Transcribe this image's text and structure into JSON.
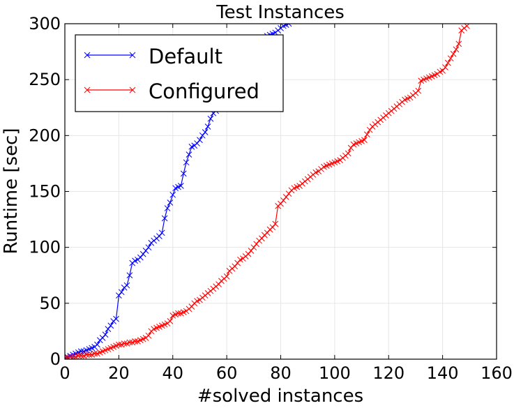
{
  "chart_data": {
    "type": "line",
    "title": "Test Instances",
    "xlabel": "#solved instances",
    "ylabel": "Runtime [sec]",
    "xlim": [
      0,
      160
    ],
    "ylim": [
      0,
      300
    ],
    "xticks": [
      "0",
      "20",
      "40",
      "60",
      "80",
      "100",
      "120",
      "140",
      "160"
    ],
    "yticks": [
      "0",
      "50",
      "100",
      "150",
      "200",
      "250",
      "300"
    ],
    "grid": true,
    "legend_position": "top-left",
    "marker": "x",
    "series": [
      {
        "name": "Default",
        "color": "#0000ff",
        "x": [
          0,
          1,
          2,
          3,
          4,
          5,
          6,
          7,
          8,
          9,
          10,
          11,
          12,
          13,
          14,
          15,
          16,
          17,
          18,
          19,
          20,
          21,
          22,
          23,
          24,
          25,
          26,
          27,
          28,
          29,
          30,
          31,
          32,
          33,
          34,
          35,
          36,
          37,
          38,
          39,
          40,
          41,
          42,
          43,
          44,
          45,
          46,
          47,
          48,
          49,
          50,
          51,
          52,
          53,
          54,
          55,
          56,
          57,
          58,
          59,
          60,
          61,
          62,
          63,
          64,
          65,
          66,
          67,
          68,
          69,
          70,
          71,
          72,
          73,
          74,
          75,
          76,
          77,
          78,
          79,
          80,
          81,
          82,
          83
        ],
        "y": [
          1,
          2,
          3,
          4,
          5,
          6,
          7,
          7,
          8,
          9,
          10,
          11,
          13,
          17,
          19,
          22,
          27,
          30,
          34,
          36,
          57,
          60,
          64,
          66,
          75,
          86,
          88,
          89,
          91,
          94,
          97,
          100,
          104,
          106,
          108,
          110,
          113,
          126,
          135,
          140,
          147,
          153,
          154,
          155,
          166,
          176,
          183,
          190,
          191,
          193,
          196,
          200,
          203,
          208,
          215,
          220,
          222,
          225,
          228,
          232,
          236,
          241,
          245,
          249,
          253,
          257,
          261,
          265,
          270,
          274,
          278,
          280,
          283,
          285,
          287,
          289,
          290,
          291,
          292,
          294,
          296,
          298,
          299,
          300
        ]
      },
      {
        "name": "Configured",
        "color": "#ff0000",
        "x": [
          0,
          1,
          2,
          3,
          4,
          5,
          6,
          7,
          8,
          9,
          10,
          11,
          12,
          13,
          14,
          15,
          16,
          17,
          18,
          19,
          20,
          21,
          22,
          23,
          24,
          25,
          26,
          27,
          28,
          29,
          30,
          31,
          32,
          33,
          34,
          35,
          36,
          37,
          38,
          39,
          40,
          41,
          42,
          43,
          44,
          45,
          46,
          47,
          48,
          49,
          50,
          51,
          52,
          53,
          54,
          55,
          56,
          57,
          58,
          59,
          60,
          61,
          62,
          63,
          64,
          65,
          66,
          67,
          68,
          69,
          70,
          71,
          72,
          73,
          74,
          75,
          76,
          77,
          78,
          79,
          80,
          81,
          82,
          83,
          84,
          85,
          86,
          87,
          88,
          89,
          90,
          91,
          92,
          93,
          94,
          95,
          96,
          97,
          98,
          99,
          100,
          101,
          102,
          103,
          104,
          105,
          106,
          107,
          108,
          109,
          110,
          111,
          112,
          113,
          114,
          115,
          116,
          117,
          118,
          119,
          120,
          121,
          122,
          123,
          124,
          125,
          126,
          127,
          128,
          129,
          130,
          131,
          132,
          133,
          134,
          135,
          136,
          137,
          138,
          139,
          140,
          141,
          142,
          143,
          144,
          145,
          146,
          147,
          148,
          149
        ],
        "y": [
          1,
          1,
          2,
          2,
          2,
          3,
          3,
          3,
          4,
          4,
          4,
          5,
          5,
          6,
          7,
          8,
          9,
          10,
          11,
          12,
          13,
          13,
          14,
          14,
          15,
          15,
          16,
          16,
          17,
          18,
          19,
          21,
          25,
          27,
          28,
          29,
          30,
          31,
          32,
          34,
          39,
          40,
          41,
          41,
          42,
          43,
          45,
          47,
          50,
          52,
          53,
          55,
          57,
          59,
          61,
          63,
          65,
          67,
          70,
          72,
          74,
          79,
          81,
          83,
          86,
          89,
          90,
          92,
          94,
          97,
          100,
          103,
          106,
          108,
          111,
          113,
          116,
          118,
          121,
          137,
          139,
          142,
          145,
          148,
          151,
          153,
          154,
          155,
          157,
          159,
          161,
          163,
          165,
          167,
          168,
          170,
          172,
          173,
          174,
          175,
          176,
          177,
          178,
          180,
          182,
          184,
          189,
          192,
          193,
          194,
          195,
          196,
          201,
          205,
          208,
          210,
          212,
          214,
          216,
          218,
          220,
          222,
          224,
          226,
          228,
          230,
          232,
          233,
          234,
          236,
          238,
          240,
          249,
          250,
          251,
          252,
          253,
          254,
          255,
          257,
          258,
          261,
          265,
          269,
          273,
          277,
          282,
          294,
          296,
          298
        ]
      }
    ]
  }
}
